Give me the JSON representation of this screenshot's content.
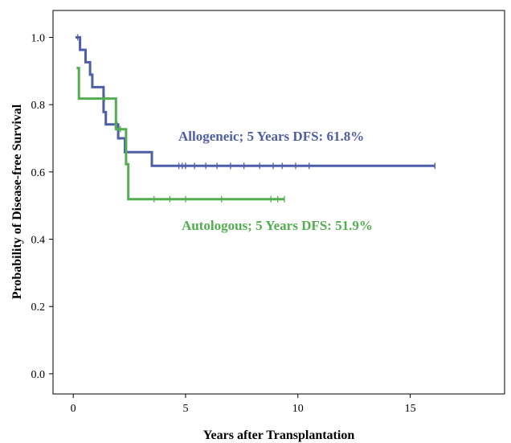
{
  "chart_data": {
    "type": "line",
    "step": true,
    "xlabel": "Years after Transplantation",
    "ylabel": "Probability of Disease-free Survival",
    "xlim": [
      -0.9,
      19.2
    ],
    "ylim": [
      -0.06,
      1.08
    ],
    "xticks": [
      0,
      5,
      10,
      15
    ],
    "yticks": [
      0.0,
      0.2,
      0.4,
      0.6,
      0.8,
      1.0
    ],
    "ytick_labels": [
      "0.0",
      "0.2",
      "0.4",
      "0.6",
      "0.8",
      "1.0"
    ],
    "grid": false,
    "series": [
      {
        "color": "#4f5ea8",
        "points": [
          [
            0.1,
            1.0
          ],
          [
            0.3,
            1.0
          ],
          [
            0.3,
            0.963
          ],
          [
            0.55,
            0.963
          ],
          [
            0.55,
            0.926
          ],
          [
            0.75,
            0.926
          ],
          [
            0.75,
            0.889
          ],
          [
            0.85,
            0.889
          ],
          [
            0.85,
            0.852
          ],
          [
            1.35,
            0.852
          ],
          [
            1.35,
            0.778
          ],
          [
            1.45,
            0.778
          ],
          [
            1.45,
            0.741
          ],
          [
            2.0,
            0.741
          ],
          [
            2.0,
            0.7
          ],
          [
            2.3,
            0.7
          ],
          [
            2.3,
            0.659
          ],
          [
            3.5,
            0.659
          ],
          [
            3.5,
            0.618
          ],
          [
            16.1,
            0.618
          ]
        ],
        "censored": [
          [
            0.2,
            1.0
          ],
          [
            1.95,
            0.741
          ],
          [
            4.7,
            0.618
          ],
          [
            4.85,
            0.618
          ],
          [
            5.0,
            0.618
          ],
          [
            5.4,
            0.618
          ],
          [
            5.9,
            0.618
          ],
          [
            6.4,
            0.618
          ],
          [
            7.0,
            0.618
          ],
          [
            7.6,
            0.618
          ],
          [
            8.3,
            0.618
          ],
          [
            8.9,
            0.618
          ],
          [
            9.3,
            0.618
          ],
          [
            9.9,
            0.618
          ],
          [
            10.5,
            0.618
          ],
          [
            16.1,
            0.618
          ]
        ]
      },
      {
        "color": "#52ae4f",
        "points": [
          [
            0.15,
            0.909
          ],
          [
            0.25,
            0.909
          ],
          [
            0.25,
            0.818
          ],
          [
            1.9,
            0.818
          ],
          [
            1.9,
            0.727
          ],
          [
            2.35,
            0.727
          ],
          [
            2.35,
            0.623
          ],
          [
            2.45,
            0.623
          ],
          [
            2.45,
            0.519
          ],
          [
            9.4,
            0.519
          ]
        ],
        "censored": [
          [
            1.4,
            0.818
          ],
          [
            2.1,
            0.727
          ],
          [
            3.6,
            0.519
          ],
          [
            4.3,
            0.519
          ],
          [
            5.0,
            0.519
          ],
          [
            6.6,
            0.519
          ],
          [
            8.8,
            0.519
          ],
          [
            9.1,
            0.519
          ],
          [
            9.4,
            0.519
          ]
        ]
      }
    ],
    "annotations": [
      {
        "text": "Allogeneic; 5 Years DFS: 61.8%",
        "color": "#4f5ea8"
      },
      {
        "text": "Autologous; 5 Years DFS: 51.9%",
        "color": "#52ae4f"
      }
    ]
  }
}
